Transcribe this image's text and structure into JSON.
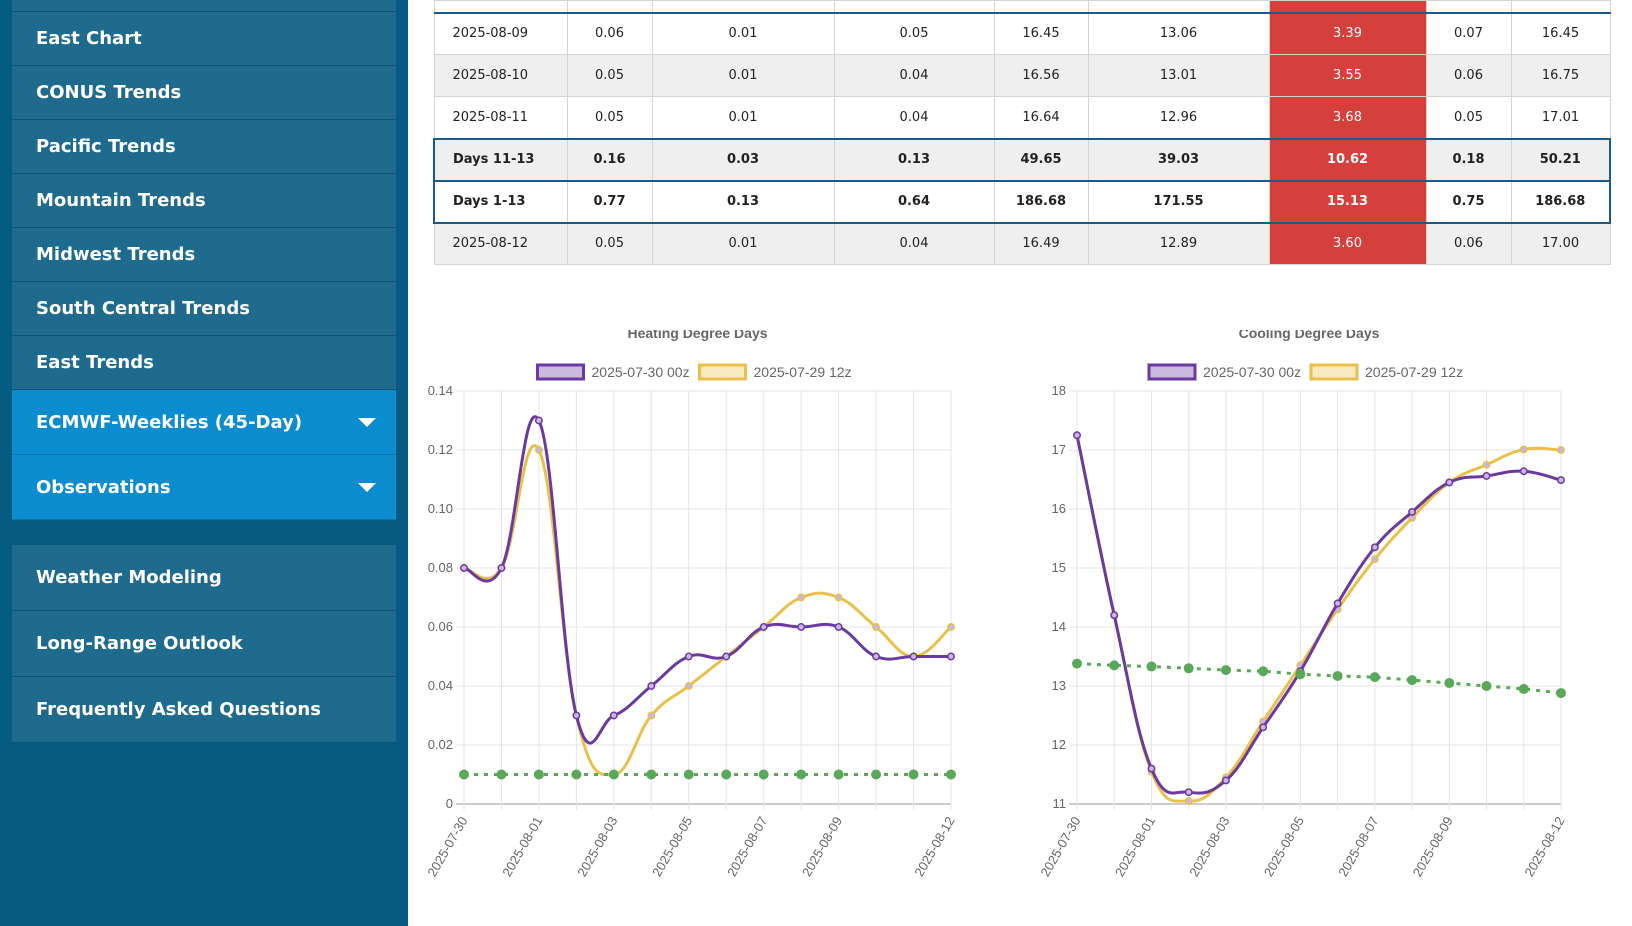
{
  "sidebar": {
    "items": [
      {
        "label": "East Chart"
      },
      {
        "label": "CONUS Trends"
      },
      {
        "label": "Pacific Trends"
      },
      {
        "label": "Mountain Trends"
      },
      {
        "label": "Midwest Trends"
      },
      {
        "label": "South Central Trends"
      },
      {
        "label": "East Trends"
      },
      {
        "label": "ECMWF-Weeklies (45-Day)"
      },
      {
        "label": "Observations"
      }
    ],
    "bottom_items": [
      {
        "label": "Weather Modeling"
      },
      {
        "label": "Long-Range Outlook"
      },
      {
        "label": "Frequently Asked Questions"
      }
    ]
  },
  "table": {
    "rows": [
      {
        "cells": [
          "2025-08-09",
          "0.06",
          "0.01",
          "0.05",
          "16.45",
          "13.06",
          "3.39",
          "0.07",
          "16.45"
        ]
      },
      {
        "cells": [
          "2025-08-10",
          "0.05",
          "0.01",
          "0.04",
          "16.56",
          "13.01",
          "3.55",
          "0.06",
          "16.75"
        ]
      },
      {
        "cells": [
          "2025-08-11",
          "0.05",
          "0.01",
          "0.04",
          "16.64",
          "12.96",
          "3.68",
          "0.05",
          "17.01"
        ]
      },
      {
        "cells": [
          "Days 11-13",
          "0.16",
          "0.03",
          "0.13",
          "49.65",
          "39.03",
          "10.62",
          "0.18",
          "50.21"
        ]
      },
      {
        "cells": [
          "Days 1-13",
          "0.77",
          "0.13",
          "0.64",
          "186.68",
          "171.55",
          "15.13",
          "0.75",
          "186.68"
        ]
      },
      {
        "cells": [
          "2025-08-12",
          "0.05",
          "0.01",
          "0.04",
          "16.49",
          "12.89",
          "3.60",
          "0.06",
          "17.00"
        ]
      }
    ]
  },
  "chart_data": [
    {
      "type": "line",
      "title": "Heating Degree Days",
      "x": [
        "2025-07-30",
        "2025-07-31",
        "2025-08-01",
        "2025-08-02",
        "2025-08-03",
        "2025-08-04",
        "2025-08-05",
        "2025-08-06",
        "2025-08-07",
        "2025-08-08",
        "2025-08-09",
        "2025-08-10",
        "2025-08-11",
        "2025-08-12"
      ],
      "x_tick_labels": [
        "2025-07-30",
        "2025-08-01",
        "2025-08-03",
        "2025-08-05",
        "2025-08-07",
        "2025-08-09",
        "2025-08-12"
      ],
      "ylim": [
        0,
        0.14
      ],
      "y_ticks": [
        "0",
        "0.02",
        "0.04",
        "0.06",
        "0.08",
        "0.10",
        "0.12",
        "0.14"
      ],
      "legend_position": "top",
      "grid": true,
      "series": [
        {
          "name": "2025-07-30 00z",
          "color": "#6b3a9e",
          "values": [
            0.08,
            0.08,
            0.13,
            0.03,
            0.03,
            0.04,
            0.05,
            0.05,
            0.06,
            0.06,
            0.06,
            0.05,
            0.05,
            0.05
          ]
        },
        {
          "name": "2025-07-29 12z",
          "color": "#e8c04a",
          "values": [
            0.08,
            0.08,
            0.12,
            0.03,
            0.01,
            0.03,
            0.04,
            0.05,
            0.06,
            0.07,
            0.07,
            0.06,
            0.05,
            0.06
          ]
        },
        {
          "color": "#5aa95a",
          "dashed": true,
          "values": [
            0.01,
            0.01,
            0.01,
            0.01,
            0.01,
            0.01,
            0.01,
            0.01,
            0.01,
            0.01,
            0.01,
            0.01,
            0.01,
            0.01
          ]
        }
      ]
    },
    {
      "type": "line",
      "title": "Cooling Degree Days",
      "x": [
        "2025-07-30",
        "2025-07-31",
        "2025-08-01",
        "2025-08-02",
        "2025-08-03",
        "2025-08-04",
        "2025-08-05",
        "2025-08-06",
        "2025-08-07",
        "2025-08-08",
        "2025-08-09",
        "2025-08-10",
        "2025-08-11",
        "2025-08-12"
      ],
      "x_tick_labels": [
        "2025-07-30",
        "2025-08-01",
        "2025-08-03",
        "2025-08-05",
        "2025-08-07",
        "2025-08-09",
        "2025-08-12"
      ],
      "ylim": [
        11,
        18
      ],
      "y_ticks": [
        "11",
        "12",
        "13",
        "14",
        "15",
        "16",
        "17",
        "18"
      ],
      "legend_position": "top",
      "grid": true,
      "series": [
        {
          "name": "2025-07-30 00z",
          "color": "#6b3a9e",
          "values": [
            17.25,
            14.2,
            11.6,
            11.2,
            11.4,
            12.3,
            13.25,
            14.4,
            15.35,
            15.95,
            16.45,
            16.56,
            16.64,
            16.49
          ]
        },
        {
          "name": "2025-07-29 12z",
          "color": "#e8c04a",
          "values": [
            17.25,
            14.2,
            11.55,
            11.05,
            11.45,
            12.4,
            13.35,
            14.3,
            15.15,
            15.85,
            16.45,
            16.75,
            17.01,
            17.0
          ]
        },
        {
          "color": "#5aa95a",
          "dashed": true,
          "values": [
            13.38,
            13.35,
            13.33,
            13.3,
            13.27,
            13.25,
            13.2,
            13.17,
            13.15,
            13.1,
            13.05,
            13.0,
            12.95,
            12.88
          ]
        }
      ]
    }
  ]
}
